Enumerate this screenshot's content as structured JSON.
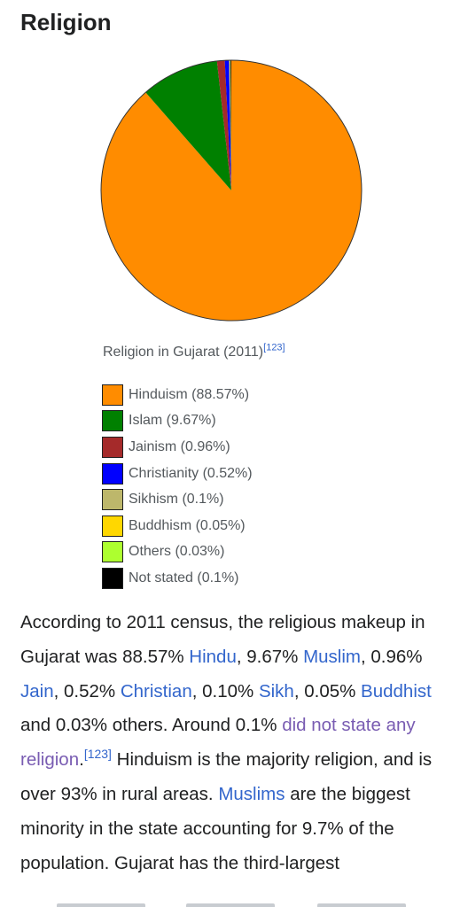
{
  "section": {
    "title": "Religion"
  },
  "chart_data": {
    "type": "pie",
    "caption": "Religion in Gujarat (2011)",
    "caption_ref": "[123]",
    "slices": [
      {
        "label": "Hinduism (88.57%)",
        "value": 88.57,
        "color": "#ff8c00"
      },
      {
        "label": "Islam (9.67%)",
        "value": 9.67,
        "color": "#008000"
      },
      {
        "label": "Jainism (0.96%)",
        "value": 0.96,
        "color": "#a52a2a"
      },
      {
        "label": "Christianity (0.52%)",
        "value": 0.52,
        "color": "#0000ff"
      },
      {
        "label": "Sikhism (0.1%)",
        "value": 0.1,
        "color": "#bdb76b"
      },
      {
        "label": "Buddhism (0.05%)",
        "value": 0.05,
        "color": "#ffd700"
      },
      {
        "label": "Others (0.03%)",
        "value": 0.03,
        "color": "#adff2f"
      },
      {
        "label": "Not stated (0.1%)",
        "value": 0.1,
        "color": "#000000"
      }
    ]
  },
  "article": {
    "p1": "According to 2011 census, the religious makeup in Gujarat was 88.57% ",
    "link_hindu": "Hindu",
    "p2": ", 9.67% ",
    "link_muslim": "Muslim",
    "p3": ", 0.96% ",
    "link_jain": "Jain",
    "p4": ", 0.52% ",
    "link_christian": "Christian",
    "p5": ", 0.10% ",
    "link_sikh": "Sikh",
    "p6": ", 0.05% ",
    "link_buddhist": "Buddhist",
    "p7": " and 0.03% others. Around 0.1% ",
    "link_no_religion": "did not state any religion",
    "p8": ".",
    "ref": "[123]",
    "p9": " Hinduism is the majority religion, and is over 93% in rural areas. ",
    "link_muslims": "Muslims",
    "p10": " are the biggest minority in the state accounting for 9.7% of the population. Gujarat has the third-largest"
  }
}
